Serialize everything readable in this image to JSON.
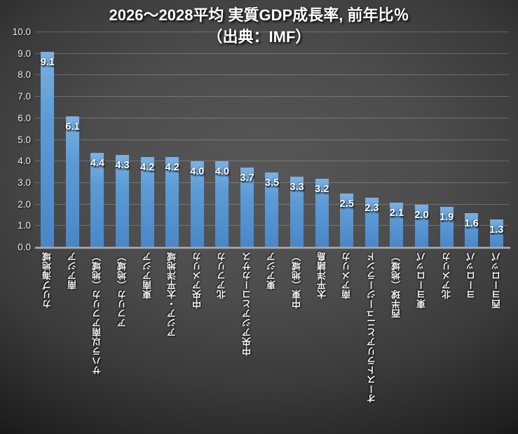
{
  "title": {
    "line1": "2026～2028平均 実質GDP成長率, 前年比％",
    "line2": "（出典：IMF）"
  },
  "chart_data": {
    "type": "bar",
    "title": "2026～2028平均 実質GDP成長率, 前年比％（出典：IMF）",
    "title_line1": "2026～2028平均 実質GDP成長率, 前年比％",
    "title_line2": "（出典：IMF）",
    "categories": [
      "カリブ海地域",
      "南アジア",
      "サハラ以南アフリカ（地域）",
      "アフリカ（地域）",
      "東南アジア",
      "アジア・太平洋地域",
      "中央アメリカ",
      "北アフリカ",
      "中央アジアとコーカサス",
      "東アジア",
      "中東（地域）",
      "太平洋諸島",
      "南アメリカ",
      "オーストラリアとニュージーランド",
      "西半球（地域）",
      "東ヨーロッパ",
      "北アメリカ",
      "ヨーロッパ",
      "西ヨーロッパ"
    ],
    "values": [
      9.1,
      6.1,
      4.4,
      4.3,
      4.2,
      4.2,
      4.0,
      4.0,
      3.7,
      3.5,
      3.3,
      3.2,
      2.5,
      2.3,
      2.1,
      2.0,
      1.9,
      1.6,
      1.3
    ],
    "data_labels": [
      "9.1",
      "6.1",
      "4.4",
      "4.3",
      "4.2",
      "4.2",
      "4.0",
      "4.0",
      "3.7",
      "3.5",
      "3.3",
      "3.2",
      "2.5",
      "2.3",
      "2.1",
      "2.0",
      "1.9",
      "1.6",
      "1.3"
    ],
    "xlabel": "",
    "ylabel": "",
    "ylim": [
      0,
      10
    ],
    "ytick_step": 1.0,
    "ytick_labels": [
      "0.0",
      "1.0",
      "2.0",
      "3.0",
      "4.0",
      "5.0",
      "6.0",
      "7.0",
      "8.0",
      "9.0",
      "10.0"
    ],
    "grid": true,
    "legend": false,
    "colors": {
      "bar": "#5b9bd5",
      "bar_gradient_top": "#7cb0e2",
      "bar_gradient_bottom": "#4a86c8",
      "data_label_text": "#ffffff",
      "axis_text": "#ececec",
      "title_text": "#ffffff",
      "gridline": "rgba(255,255,255,0.22)",
      "axis_line": "#9e9e9e",
      "background_center": "#545454",
      "background_edge": "#090909"
    }
  }
}
